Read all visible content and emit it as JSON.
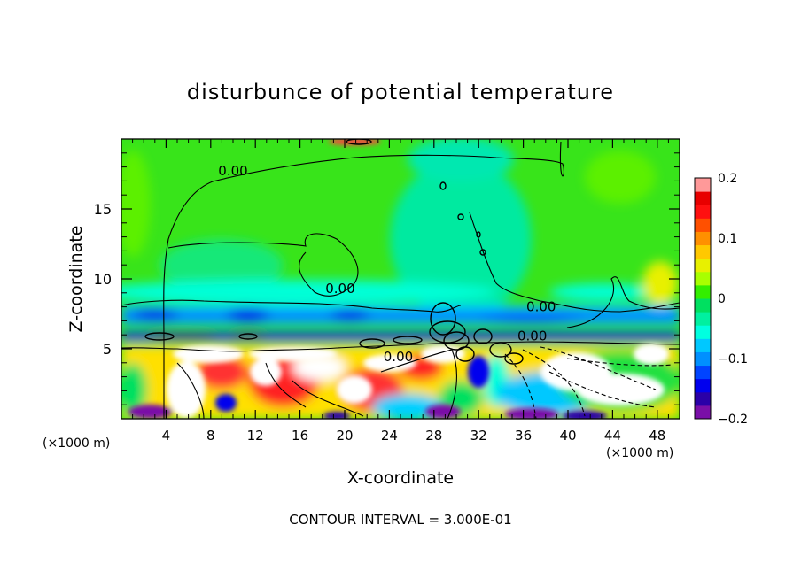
{
  "chart_data": {
    "type": "heatmap",
    "title": "disturbunce of potential temperature",
    "xlabel": "X-coordinate",
    "ylabel": "Z-coordinate",
    "x_unit_left": "(×1000 m)",
    "x_unit_right": "(×1000 m)",
    "xlim": [
      0,
      50
    ],
    "ylim": [
      0,
      20
    ],
    "x_ticks": [
      4,
      8,
      12,
      16,
      20,
      24,
      28,
      32,
      36,
      40,
      44,
      48
    ],
    "y_ticks": [
      5,
      10,
      15
    ],
    "footer": "CONTOUR INTERVAL = 3.000E-01",
    "colorbar": {
      "min": -0.2,
      "max": 0.2,
      "tick_labels": [
        "0.2",
        "0.1",
        "0",
        "−0.1",
        "−0.2"
      ],
      "tick_values": [
        0.2,
        0.1,
        0,
        -0.1,
        -0.2
      ],
      "colors": [
        "#7a0fa8",
        "#2a00a8",
        "#0000ee",
        "#0044ff",
        "#0090ff",
        "#00c8ff",
        "#00ffe0",
        "#00f0a0",
        "#00e060",
        "#33ee00",
        "#a8ff00",
        "#e8f000",
        "#ffc800",
        "#ff9000",
        "#ff5000",
        "#ff1010",
        "#e80000",
        "#ff9999"
      ]
    },
    "contour_labels": [
      {
        "text": "0.00",
        "x": 10.0,
        "z": 17.4
      },
      {
        "text": "0.00",
        "x": 19.6,
        "z": 9.0
      },
      {
        "text": "0.00",
        "x": 24.8,
        "z": 4.1
      },
      {
        "text": "0.00",
        "x": 37.6,
        "z": 7.7
      },
      {
        "text": "0.00",
        "x": 36.8,
        "z": 5.6
      }
    ],
    "grid": false
  }
}
